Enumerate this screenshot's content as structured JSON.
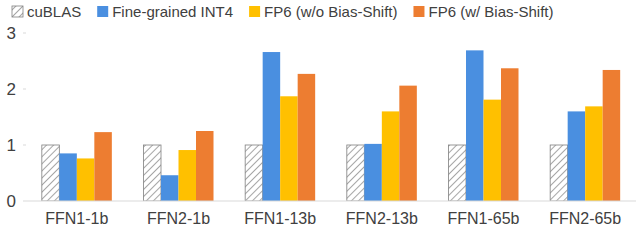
{
  "chart_data": {
    "type": "bar",
    "categories": [
      "FFN1-1b",
      "FFN2-1b",
      "FFN1-13b",
      "FFN2-13b",
      "FFN1-65b",
      "FFN2-65b"
    ],
    "series": [
      {
        "name": "cuBLAS",
        "color": "#a6a6a6",
        "values": [
          1,
          1,
          1,
          1,
          1,
          1
        ]
      },
      {
        "name": "Fine-grained INT4",
        "color": "#4a8fe0",
        "values": [
          0.85,
          0.46,
          2.66,
          1.02,
          2.69,
          1.6
        ]
      },
      {
        "name": "FP6 (w/o Bias-Shift)",
        "color": "#ffc000",
        "values": [
          0.76,
          0.91,
          1.87,
          1.6,
          1.81,
          1.69
        ]
      },
      {
        "name": "FP6 (w/ Bias-Shift)",
        "color": "#ed7d31",
        "values": [
          1.23,
          1.25,
          2.27,
          2.06,
          2.37,
          2.34
        ]
      }
    ],
    "ylim": [
      0,
      3
    ],
    "yticks": [
      0,
      1,
      2,
      3
    ],
    "grid": false,
    "legend": "top"
  }
}
